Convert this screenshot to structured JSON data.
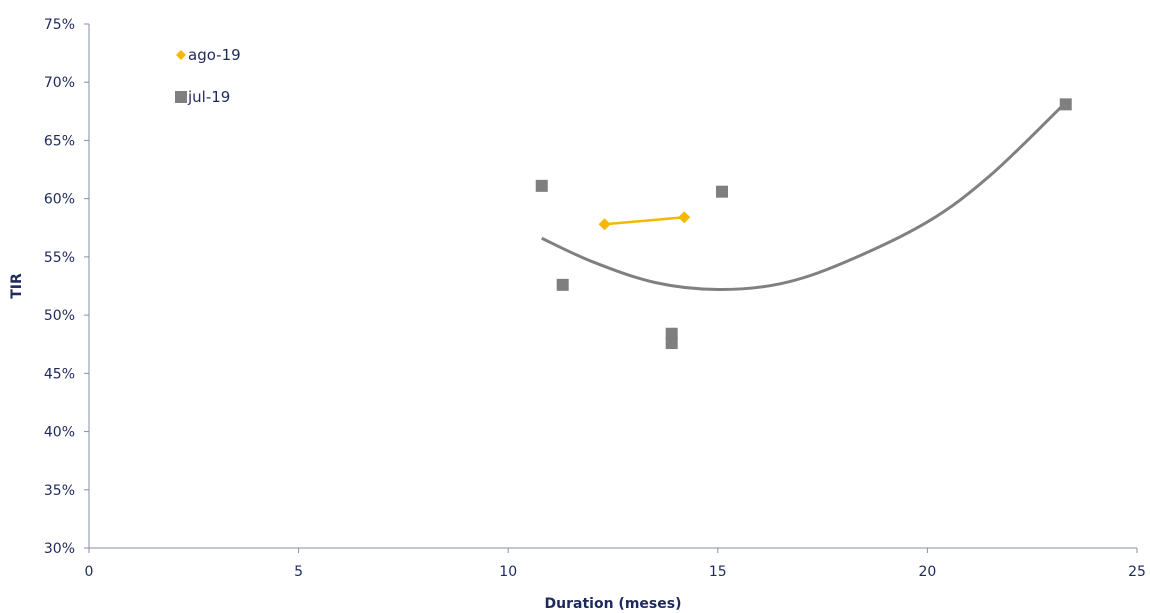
{
  "chart_data": {
    "type": "scatter",
    "xlabel": "Duration (meses)",
    "ylabel": "TIR",
    "xlim": [
      0,
      25
    ],
    "ylim": [
      0.3,
      0.75
    ],
    "x_ticks": [
      0,
      5,
      10,
      15,
      20,
      25
    ],
    "y_ticks": [
      0.3,
      0.35,
      0.4,
      0.45,
      0.5,
      0.55,
      0.6,
      0.65,
      0.7,
      0.75
    ],
    "x_tick_labels": [
      "0",
      "5",
      "10",
      "15",
      "20",
      "25"
    ],
    "y_tick_labels": [
      "30%",
      "35%",
      "40%",
      "45%",
      "50%",
      "55%",
      "60%",
      "65%",
      "70%",
      "75%"
    ],
    "grid": false,
    "legend_position": "top-left",
    "series": [
      {
        "name": "ago-19",
        "marker": "diamond",
        "color": "#f5b800",
        "connected": true,
        "points": [
          {
            "x": 12.3,
            "y": 0.578
          },
          {
            "x": 14.2,
            "y": 0.584
          }
        ]
      },
      {
        "name": "jul-19",
        "marker": "square",
        "color": "#7f7f7f",
        "connected": false,
        "points": [
          {
            "x": 10.8,
            "y": 0.611
          },
          {
            "x": 11.3,
            "y": 0.526
          },
          {
            "x": 13.9,
            "y": 0.484
          },
          {
            "x": 13.9,
            "y": 0.476
          },
          {
            "x": 15.1,
            "y": 0.606
          },
          {
            "x": 23.3,
            "y": 0.681
          }
        ]
      }
    ],
    "trendline": {
      "series": "jul-19",
      "kind": "polynomial",
      "color": "#808080",
      "points": [
        {
          "x": 10.8,
          "y": 0.566
        },
        {
          "x": 12.0,
          "y": 0.546
        },
        {
          "x": 13.5,
          "y": 0.528
        },
        {
          "x": 15.0,
          "y": 0.522
        },
        {
          "x": 16.5,
          "y": 0.527
        },
        {
          "x": 18.0,
          "y": 0.545
        },
        {
          "x": 20.0,
          "y": 0.58
        },
        {
          "x": 21.5,
          "y": 0.62
        },
        {
          "x": 23.2,
          "y": 0.679
        }
      ]
    }
  }
}
